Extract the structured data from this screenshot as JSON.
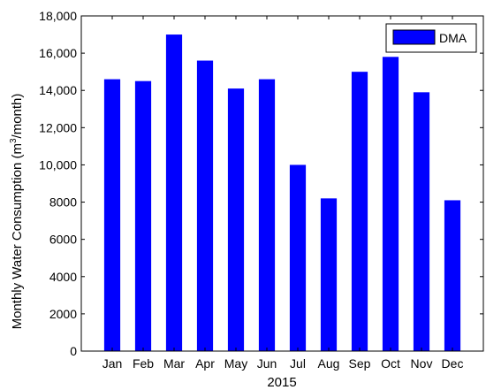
{
  "chart_data": {
    "type": "bar",
    "categories": [
      "Jan",
      "Feb",
      "Mar",
      "Apr",
      "May",
      "Jun",
      "Jul",
      "Aug",
      "Sep",
      "Oct",
      "Nov",
      "Dec"
    ],
    "series": [
      {
        "name": "DMA",
        "color": "#0000ff",
        "values": [
          14600,
          14500,
          17000,
          15600,
          14100,
          14600,
          10000,
          8200,
          15000,
          15800,
          13900,
          8100
        ]
      }
    ],
    "title": "",
    "xlabel": "2015",
    "ylabel": {
      "pre": "Monthly Water Consumption (m",
      "sup": "3",
      "post": "/month)"
    },
    "ylim": [
      0,
      18000
    ],
    "xlim": [
      0,
      13
    ],
    "yticks": [
      0,
      2000,
      4000,
      6000,
      8000,
      10000,
      12000,
      14000,
      16000,
      18000
    ],
    "ytick_labels": [
      "0",
      "2000",
      "4000",
      "6000",
      "8000",
      "10,000",
      "12,000",
      "14,000",
      "16,000",
      "18,000"
    ],
    "grid": false,
    "legend_position": "top-right"
  }
}
